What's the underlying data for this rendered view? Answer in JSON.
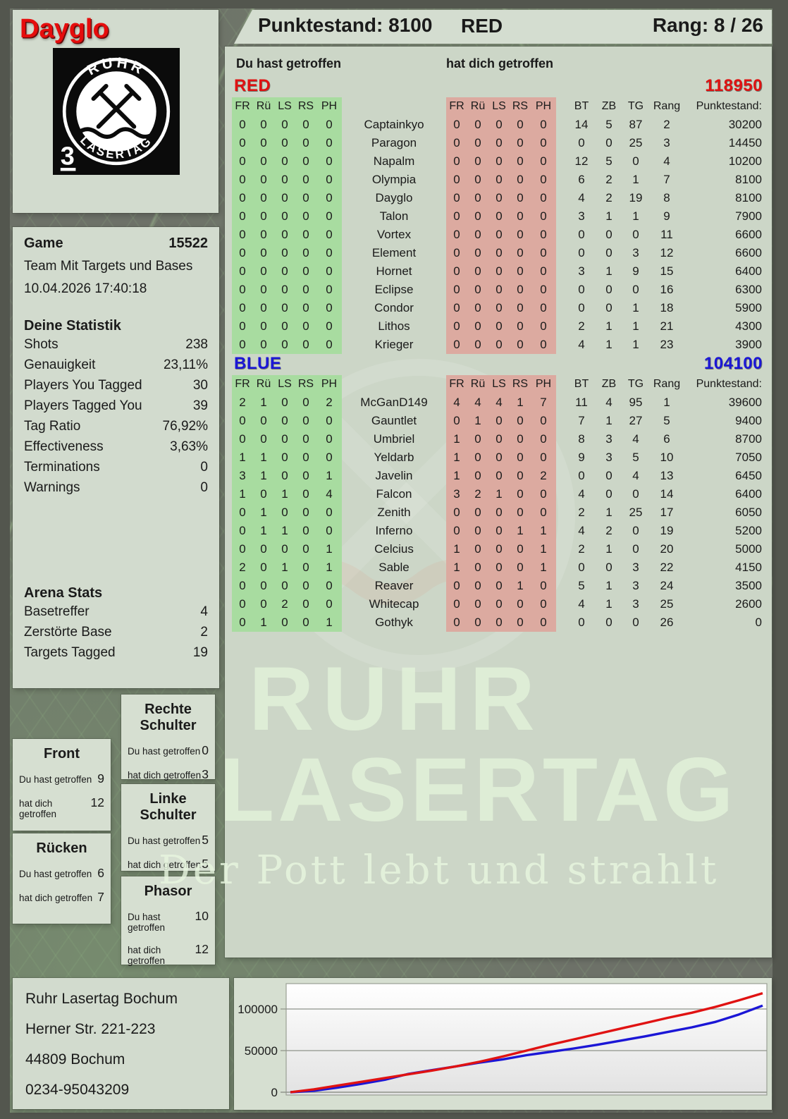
{
  "colors": {
    "green_cell": "#a8dca0",
    "pink_cell": "#dcaaa0",
    "red": "#e01212",
    "blue": "#1b16d6"
  },
  "player": {
    "name": "Dayglo",
    "badge": "3"
  },
  "brand": {
    "logo_top": "RUHR",
    "logo_bottom": "LASERTAG"
  },
  "header": {
    "score": "Punktestand: 8100",
    "team": "RED",
    "rank": "Rang: 8 / 26"
  },
  "columns": {
    "you_hit": "Du hast getroffen",
    "hit_you": "hat dich getroffen"
  },
  "game": {
    "label": "Game",
    "id": "15522",
    "mode": "Team Mit Targets und Bases",
    "datetime": "10.04.2026 17:40:18"
  },
  "your_stats": {
    "title": "Deine Statistik",
    "rows": [
      {
        "label": "Shots",
        "value": "238"
      },
      {
        "label": "Genauigkeit",
        "value": "23,11%"
      },
      {
        "label": "Players You Tagged",
        "value": "30"
      },
      {
        "label": "Players Tagged You",
        "value": "39"
      },
      {
        "label": "Tag Ratio",
        "value": "76,92%"
      },
      {
        "label": "Effectiveness",
        "value": "3,63%"
      },
      {
        "label": "Terminations",
        "value": "0"
      },
      {
        "label": "Warnings",
        "value": "0"
      }
    ]
  },
  "arena_stats": {
    "title": "Arena Stats",
    "rows": [
      {
        "label": "Basetreffer",
        "value": "4"
      },
      {
        "label": "Zerstörte Base",
        "value": "2"
      },
      {
        "label": "Targets Tagged",
        "value": "19"
      }
    ]
  },
  "hit_zones": {
    "you_label": "Du hast getroffen",
    "them_label": "hat dich getroffen",
    "zones": [
      {
        "title": "Rechte Schulter",
        "you": "0",
        "them": "3"
      },
      {
        "title": "Front",
        "you": "9",
        "them": "12"
      },
      {
        "title": "Linke Schulter",
        "you": "5",
        "them": "5"
      },
      {
        "title": "Rücken",
        "you": "6",
        "them": "7"
      },
      {
        "title": "Phasor",
        "you": "10",
        "them": "12"
      }
    ]
  },
  "teams": [
    {
      "name": "RED",
      "color": "#e01212",
      "total": "118950",
      "col_headers": [
        "FR",
        "Rü",
        "LS",
        "RS",
        "PH"
      ],
      "right_headers": [
        "BT",
        "ZB",
        "TG",
        "Rang",
        "Punktestand:"
      ],
      "rows": [
        {
          "you": [
            0,
            0,
            0,
            0,
            0
          ],
          "name": "Captainkyo",
          "them": [
            0,
            0,
            0,
            0,
            0
          ],
          "bt": 14,
          "zb": 5,
          "tg": 87,
          "rang": 2,
          "punkte": 30200
        },
        {
          "you": [
            0,
            0,
            0,
            0,
            0
          ],
          "name": "Paragon",
          "them": [
            0,
            0,
            0,
            0,
            0
          ],
          "bt": 0,
          "zb": 0,
          "tg": 25,
          "rang": 3,
          "punkte": 14450
        },
        {
          "you": [
            0,
            0,
            0,
            0,
            0
          ],
          "name": "Napalm",
          "them": [
            0,
            0,
            0,
            0,
            0
          ],
          "bt": 12,
          "zb": 5,
          "tg": 0,
          "rang": 4,
          "punkte": 10200
        },
        {
          "you": [
            0,
            0,
            0,
            0,
            0
          ],
          "name": "Olympia",
          "them": [
            0,
            0,
            0,
            0,
            0
          ],
          "bt": 6,
          "zb": 2,
          "tg": 1,
          "rang": 7,
          "punkte": 8100
        },
        {
          "you": [
            0,
            0,
            0,
            0,
            0
          ],
          "name": "Dayglo",
          "them": [
            0,
            0,
            0,
            0,
            0
          ],
          "bt": 4,
          "zb": 2,
          "tg": 19,
          "rang": 8,
          "punkte": 8100
        },
        {
          "you": [
            0,
            0,
            0,
            0,
            0
          ],
          "name": "Talon",
          "them": [
            0,
            0,
            0,
            0,
            0
          ],
          "bt": 3,
          "zb": 1,
          "tg": 1,
          "rang": 9,
          "punkte": 7900
        },
        {
          "you": [
            0,
            0,
            0,
            0,
            0
          ],
          "name": "Vortex",
          "them": [
            0,
            0,
            0,
            0,
            0
          ],
          "bt": 0,
          "zb": 0,
          "tg": 0,
          "rang": 11,
          "punkte": 6600
        },
        {
          "you": [
            0,
            0,
            0,
            0,
            0
          ],
          "name": "Element",
          "them": [
            0,
            0,
            0,
            0,
            0
          ],
          "bt": 0,
          "zb": 0,
          "tg": 3,
          "rang": 12,
          "punkte": 6600
        },
        {
          "you": [
            0,
            0,
            0,
            0,
            0
          ],
          "name": "Hornet",
          "them": [
            0,
            0,
            0,
            0,
            0
          ],
          "bt": 3,
          "zb": 1,
          "tg": 9,
          "rang": 15,
          "punkte": 6400
        },
        {
          "you": [
            0,
            0,
            0,
            0,
            0
          ],
          "name": "Eclipse",
          "them": [
            0,
            0,
            0,
            0,
            0
          ],
          "bt": 0,
          "zb": 0,
          "tg": 0,
          "rang": 16,
          "punkte": 6300
        },
        {
          "you": [
            0,
            0,
            0,
            0,
            0
          ],
          "name": "Condor",
          "them": [
            0,
            0,
            0,
            0,
            0
          ],
          "bt": 0,
          "zb": 0,
          "tg": 1,
          "rang": 18,
          "punkte": 5900
        },
        {
          "you": [
            0,
            0,
            0,
            0,
            0
          ],
          "name": "Lithos",
          "them": [
            0,
            0,
            0,
            0,
            0
          ],
          "bt": 2,
          "zb": 1,
          "tg": 1,
          "rang": 21,
          "punkte": 4300
        },
        {
          "you": [
            0,
            0,
            0,
            0,
            0
          ],
          "name": "Krieger",
          "them": [
            0,
            0,
            0,
            0,
            0
          ],
          "bt": 4,
          "zb": 1,
          "tg": 1,
          "rang": 23,
          "punkte": 3900
        }
      ]
    },
    {
      "name": "BLUE",
      "color": "#1b16d6",
      "total": "104100",
      "col_headers": [
        "FR",
        "Rü",
        "LS",
        "RS",
        "PH"
      ],
      "right_headers": [
        "BT",
        "ZB",
        "TG",
        "Rang",
        "Punktestand:"
      ],
      "rows": [
        {
          "you": [
            2,
            1,
            0,
            0,
            2
          ],
          "name": "McGanD149",
          "them": [
            4,
            4,
            4,
            1,
            7
          ],
          "bt": 11,
          "zb": 4,
          "tg": 95,
          "rang": 1,
          "punkte": 39600
        },
        {
          "you": [
            0,
            0,
            0,
            0,
            0
          ],
          "name": "Gauntlet",
          "them": [
            0,
            1,
            0,
            0,
            0
          ],
          "bt": 7,
          "zb": 1,
          "tg": 27,
          "rang": 5,
          "punkte": 9400
        },
        {
          "you": [
            0,
            0,
            0,
            0,
            0
          ],
          "name": "Umbriel",
          "them": [
            1,
            0,
            0,
            0,
            0
          ],
          "bt": 8,
          "zb": 3,
          "tg": 4,
          "rang": 6,
          "punkte": 8700
        },
        {
          "you": [
            1,
            1,
            0,
            0,
            0
          ],
          "name": "Yeldarb",
          "them": [
            1,
            0,
            0,
            0,
            0
          ],
          "bt": 9,
          "zb": 3,
          "tg": 5,
          "rang": 10,
          "punkte": 7050
        },
        {
          "you": [
            3,
            1,
            0,
            0,
            1
          ],
          "name": "Javelin",
          "them": [
            1,
            0,
            0,
            0,
            2
          ],
          "bt": 0,
          "zb": 0,
          "tg": 4,
          "rang": 13,
          "punkte": 6450
        },
        {
          "you": [
            1,
            0,
            1,
            0,
            4
          ],
          "name": "Falcon",
          "them": [
            3,
            2,
            1,
            0,
            0
          ],
          "bt": 4,
          "zb": 0,
          "tg": 0,
          "rang": 14,
          "punkte": 6400
        },
        {
          "you": [
            0,
            1,
            0,
            0,
            0
          ],
          "name": "Zenith",
          "them": [
            0,
            0,
            0,
            0,
            0
          ],
          "bt": 2,
          "zb": 1,
          "tg": 25,
          "rang": 17,
          "punkte": 6050
        },
        {
          "you": [
            0,
            1,
            1,
            0,
            0
          ],
          "name": "Inferno",
          "them": [
            0,
            0,
            0,
            1,
            1
          ],
          "bt": 4,
          "zb": 2,
          "tg": 0,
          "rang": 19,
          "punkte": 5200
        },
        {
          "you": [
            0,
            0,
            0,
            0,
            1
          ],
          "name": "Celcius",
          "them": [
            1,
            0,
            0,
            0,
            1
          ],
          "bt": 2,
          "zb": 1,
          "tg": 0,
          "rang": 20,
          "punkte": 5000
        },
        {
          "you": [
            2,
            0,
            1,
            0,
            1
          ],
          "name": "Sable",
          "them": [
            1,
            0,
            0,
            0,
            1
          ],
          "bt": 0,
          "zb": 0,
          "tg": 3,
          "rang": 22,
          "punkte": 4150
        },
        {
          "you": [
            0,
            0,
            0,
            0,
            0
          ],
          "name": "Reaver",
          "them": [
            0,
            0,
            0,
            1,
            0
          ],
          "bt": 5,
          "zb": 1,
          "tg": 3,
          "rang": 24,
          "punkte": 3500
        },
        {
          "you": [
            0,
            0,
            2,
            0,
            0
          ],
          "name": "Whitecap",
          "them": [
            0,
            0,
            0,
            0,
            0
          ],
          "bt": 4,
          "zb": 1,
          "tg": 3,
          "rang": 25,
          "punkte": 2600
        },
        {
          "you": [
            0,
            1,
            0,
            0,
            1
          ],
          "name": "Gothyk",
          "them": [
            0,
            0,
            0,
            0,
            0
          ],
          "bt": 0,
          "zb": 0,
          "tg": 0,
          "rang": 26,
          "punkte": 0
        }
      ]
    }
  ],
  "watermark": {
    "line1": "RUHR",
    "line2": "LASERTAG",
    "line3": "Der Pott lebt und strahlt"
  },
  "footer": {
    "lines": [
      "Ruhr Lasertag Bochum",
      "Herner Str. 221-223",
      "44809 Bochum",
      "0234-95043209"
    ]
  },
  "chart_data": {
    "type": "line",
    "title": "",
    "xlabel": "",
    "ylabel": "",
    "ylim": [
      0,
      125000
    ],
    "yticks": [
      0,
      50000,
      100000
    ],
    "grid": true,
    "legend_position": "none",
    "series": [
      {
        "name": "RED",
        "color": "#e01212",
        "values": [
          0,
          3500,
          8000,
          12500,
          17000,
          21500,
          26000,
          31000,
          36500,
          43000,
          50000,
          57000,
          63500,
          70000,
          76500,
          83000,
          89500,
          95500,
          102500,
          110500,
          118950
        ]
      },
      {
        "name": "BLUE",
        "color": "#1b16d6",
        "values": [
          0,
          1800,
          5500,
          10000,
          15000,
          22000,
          26500,
          31000,
          35500,
          39500,
          44500,
          48500,
          52500,
          57000,
          62000,
          67000,
          72500,
          78000,
          84500,
          93500,
          104100
        ]
      }
    ]
  }
}
